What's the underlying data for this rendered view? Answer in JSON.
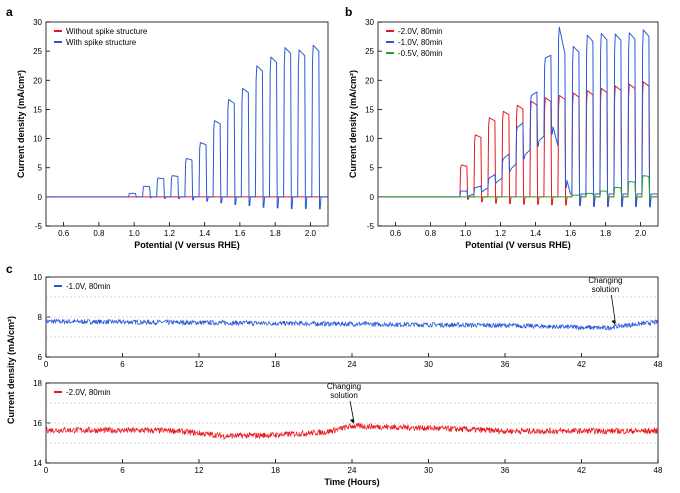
{
  "chart_data": [
    {
      "panel": "a",
      "type": "line",
      "xlabel": "Potential (V versus RHE)",
      "ylabel": "Current density (mA/cm²)",
      "xlim": [
        0.5,
        2.1
      ],
      "ylim": [
        -5,
        30
      ],
      "xticks": [
        "0.6",
        "0.8",
        "1.0",
        "1.2",
        "1.4",
        "1.6",
        "1.8",
        "2.0"
      ],
      "yticks": [
        "-5",
        "0",
        "5",
        "10",
        "15",
        "20",
        "25",
        "30"
      ],
      "legend_position": "top-left",
      "grid": false,
      "chopped_light": true,
      "light_on_windows": [
        [
          0.97,
          1.01
        ],
        [
          1.05,
          1.09
        ],
        [
          1.13,
          1.17
        ],
        [
          1.21,
          1.25
        ],
        [
          1.29,
          1.33
        ],
        [
          1.37,
          1.41
        ],
        [
          1.45,
          1.49
        ],
        [
          1.53,
          1.57
        ],
        [
          1.61,
          1.65
        ],
        [
          1.69,
          1.73
        ],
        [
          1.77,
          1.81
        ],
        [
          1.85,
          1.89
        ],
        [
          1.93,
          1.97
        ],
        [
          2.01,
          2.05
        ]
      ],
      "series": [
        {
          "name": "Without spike structure",
          "color": "#e8191e",
          "dark_level": 0.0,
          "light_peaks": [
            0,
            0,
            0,
            0,
            0,
            0,
            0,
            0,
            0,
            0,
            0,
            0,
            0,
            0
          ]
        },
        {
          "name": "With spike structure",
          "color": "#2a5bd7",
          "dark_level": 0.0,
          "light_peaks": [
            0.6,
            1.8,
            3.2,
            3.6,
            6.5,
            9.2,
            12.9,
            16.5,
            18.4,
            22.2,
            23.7,
            25.3,
            24.9,
            25.7
          ]
        }
      ]
    },
    {
      "panel": "b",
      "type": "line",
      "xlabel": "Potential (V versus RHE)",
      "ylabel": "Current density (mA/cm²)",
      "xlim": [
        0.5,
        2.1
      ],
      "ylim": [
        -5,
        30
      ],
      "xticks": [
        "0.6",
        "0.8",
        "1.0",
        "1.2",
        "1.4",
        "1.6",
        "1.8",
        "2.0"
      ],
      "yticks": [
        "-5",
        "0",
        "5",
        "10",
        "15",
        "20",
        "25",
        "30"
      ],
      "legend_position": "top-left",
      "grid": false,
      "chopped_light": true,
      "light_on_windows": [
        [
          0.97,
          1.01
        ],
        [
          1.05,
          1.09
        ],
        [
          1.13,
          1.17
        ],
        [
          1.21,
          1.25
        ],
        [
          1.29,
          1.33
        ],
        [
          1.37,
          1.41
        ],
        [
          1.45,
          1.49
        ],
        [
          1.53,
          1.57
        ],
        [
          1.61,
          1.65
        ],
        [
          1.69,
          1.73
        ],
        [
          1.77,
          1.81
        ],
        [
          1.85,
          1.89
        ],
        [
          1.93,
          1.97
        ],
        [
          2.01,
          2.05
        ]
      ],
      "series": [
        {
          "name": "-2.0V, 80min",
          "color": "#e8191e",
          "dark_level": 0.0,
          "light_peaks": [
            5.4,
            10.5,
            13.4,
            14.5,
            15.5,
            16.2,
            16.8,
            17.2,
            17.6,
            18.0,
            18.4,
            18.8,
            19.1,
            19.5
          ]
        },
        {
          "name": "-1.0V, 80min",
          "color": "#2a5bd7",
          "dark_level_curve": [
            [
              0.9,
              0
            ],
            [
              1.0,
              0
            ],
            [
              1.1,
              1
            ],
            [
              1.2,
              3
            ],
            [
              1.3,
              6
            ],
            [
              1.4,
              9
            ],
            [
              1.5,
              12
            ],
            [
              1.6,
              0.5
            ],
            [
              2.1,
              0.5
            ]
          ],
          "light_peaks": [
            1.0,
            1.0,
            1.5,
            3.0,
            6.0,
            9.0,
            13.0,
            21.0,
            25.0,
            26.9,
            27.2,
            27.1,
            27.3,
            27.8
          ]
        },
        {
          "name": "-0.5V, 80min",
          "color": "#2e9e2e",
          "dark_level": 0.0,
          "light_peaks": [
            0,
            0,
            0,
            0,
            0,
            0,
            0,
            0,
            0.3,
            0.6,
            1.0,
            1.6,
            2.6,
            3.6
          ]
        }
      ]
    },
    {
      "panel": "c",
      "type": "line",
      "xlabel": "Time (Hours)",
      "ylabel": "Current density (mA/cm²)",
      "subplots": [
        {
          "xlim": [
            0,
            48
          ],
          "ylim": [
            6,
            10
          ],
          "xticks": [
            "0",
            "6",
            "12",
            "18",
            "24",
            "30",
            "36",
            "42",
            "48"
          ],
          "yticks": [
            "6",
            "8",
            "10"
          ],
          "grid": true,
          "series": [
            {
              "name": "-1.0V, 80min",
              "color": "#2a5bd7",
              "mean_curve": [
                [
                  0,
                  7.78
                ],
                [
                  12,
                  7.72
                ],
                [
                  24,
                  7.65
                ],
                [
                  36,
                  7.58
                ],
                [
                  44,
                  7.45
                ],
                [
                  45,
                  7.55
                ],
                [
                  48,
                  7.75
                ]
              ],
              "noise": 0.12
            }
          ],
          "annotation": {
            "text": [
              "Changing",
              "solution"
            ],
            "x": 44.5,
            "y": 7.5
          }
        },
        {
          "xlim": [
            0,
            48
          ],
          "ylim": [
            14,
            18
          ],
          "xticks": [
            "0",
            "6",
            "12",
            "18",
            "24",
            "30",
            "36",
            "42",
            "48"
          ],
          "yticks": [
            "14",
            "16",
            "18"
          ],
          "grid": true,
          "series": [
            {
              "name": "-2.0V, 80min",
              "color": "#e8191e",
              "mean_curve": [
                [
                  0,
                  15.65
                ],
                [
                  10,
                  15.62
                ],
                [
                  14,
                  15.35
                ],
                [
                  18,
                  15.4
                ],
                [
                  22,
                  15.55
                ],
                [
                  24,
                  15.85
                ],
                [
                  30,
                  15.75
                ],
                [
                  36,
                  15.6
                ],
                [
                  48,
                  15.6
                ]
              ],
              "noise": 0.15
            }
          ],
          "annotation": {
            "text": [
              "Changing",
              "solution"
            ],
            "x": 24,
            "y": 15.85
          }
        }
      ]
    }
  ],
  "labels": {
    "panel_a": "a",
    "panel_b": "b",
    "panel_c": "c"
  }
}
